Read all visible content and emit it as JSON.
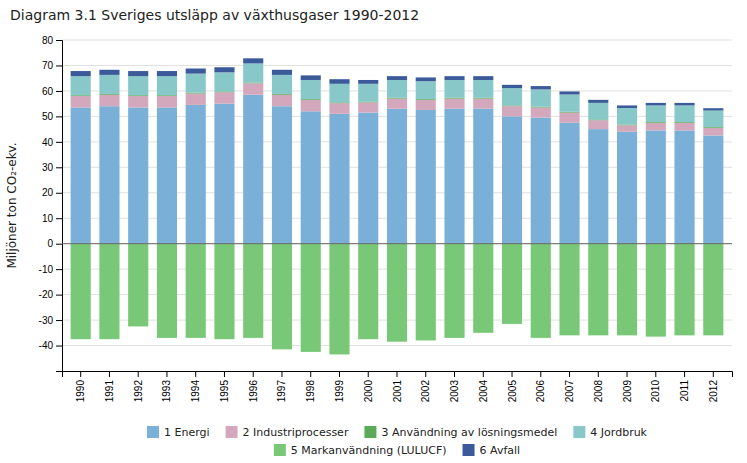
{
  "chart_data": {
    "type": "bar",
    "stacked": true,
    "grid": true,
    "title": "Diagram 3.1 Sveriges utsläpp av växthusgaser 1990-2012",
    "ylabel": "Miljöner ton CO₂-ekv.",
    "categories": [
      "1990",
      "1991",
      "1992",
      "1993",
      "1994",
      "1995",
      "1996",
      "1997",
      "1998",
      "1999",
      "2000",
      "2001",
      "2002",
      "2003",
      "2004",
      "2005",
      "2006",
      "2007",
      "2008",
      "2009",
      "2010",
      "2011",
      "2012"
    ],
    "series": [
      {
        "name": "1 Energi",
        "color": "#7ab0d8",
        "values": [
          53.5,
          54.0,
          53.5,
          53.5,
          54.5,
          55.0,
          58.5,
          54.0,
          52.0,
          51.0,
          51.5,
          53.0,
          52.5,
          53.0,
          53.0,
          50.0,
          49.5,
          47.5,
          45.0,
          44.0,
          44.5,
          44.5,
          42.5
        ]
      },
      {
        "name": "2 Industriprocesser",
        "color": "#d4a8bc",
        "values": [
          4.5,
          4.5,
          4.5,
          4.5,
          4.5,
          4.5,
          4.5,
          4.5,
          4.5,
          4.2,
          4.0,
          4.0,
          4.0,
          4.0,
          4.0,
          4.0,
          4.0,
          4.0,
          3.5,
          2.5,
          3.0,
          3.0,
          3.0
        ]
      },
      {
        "name": "3 Användning av lösningsmedel",
        "color": "#5aaa5a",
        "values": [
          0.3,
          0.3,
          0.3,
          0.3,
          0.3,
          0.3,
          0.3,
          0.3,
          0.3,
          0.3,
          0.3,
          0.3,
          0.3,
          0.3,
          0.3,
          0.3,
          0.3,
          0.3,
          0.3,
          0.3,
          0.3,
          0.3,
          0.3
        ]
      },
      {
        "name": "4 Jordbruk",
        "color": "#88c8c8",
        "values": [
          7.5,
          7.5,
          7.5,
          7.5,
          7.5,
          7.5,
          7.5,
          7.5,
          7.5,
          7.3,
          7.0,
          7.0,
          7.0,
          7.0,
          7.0,
          6.8,
          6.8,
          6.8,
          6.5,
          6.5,
          6.5,
          6.5,
          6.5
        ]
      },
      {
        "name": "5 Markanvändning (LULUCF)",
        "color": "#78c878",
        "values": [
          -37.5,
          -37.5,
          -32.5,
          -37.0,
          -37.0,
          -37.5,
          -37.0,
          -41.5,
          -42.5,
          -43.5,
          -37.5,
          -38.5,
          -38.0,
          -37.0,
          -35.0,
          -31.5,
          -37.0,
          -36.0,
          -36.0,
          -36.0,
          -36.5,
          -36.0,
          -36.0
        ]
      },
      {
        "name": "6 Avfall",
        "color": "#3a5a9a",
        "values": [
          2.0,
          2.0,
          2.0,
          2.0,
          2.0,
          2.0,
          2.0,
          2.0,
          1.8,
          1.8,
          1.5,
          1.5,
          1.5,
          1.5,
          1.5,
          1.3,
          1.3,
          1.2,
          1.2,
          1.0,
          1.0,
          1.0,
          0.9
        ]
      }
    ],
    "ylim": [
      -50,
      80
    ],
    "yticks": [
      -40,
      -30,
      -20,
      -10,
      0,
      10,
      20,
      30,
      40,
      50,
      60,
      70,
      80
    ]
  }
}
